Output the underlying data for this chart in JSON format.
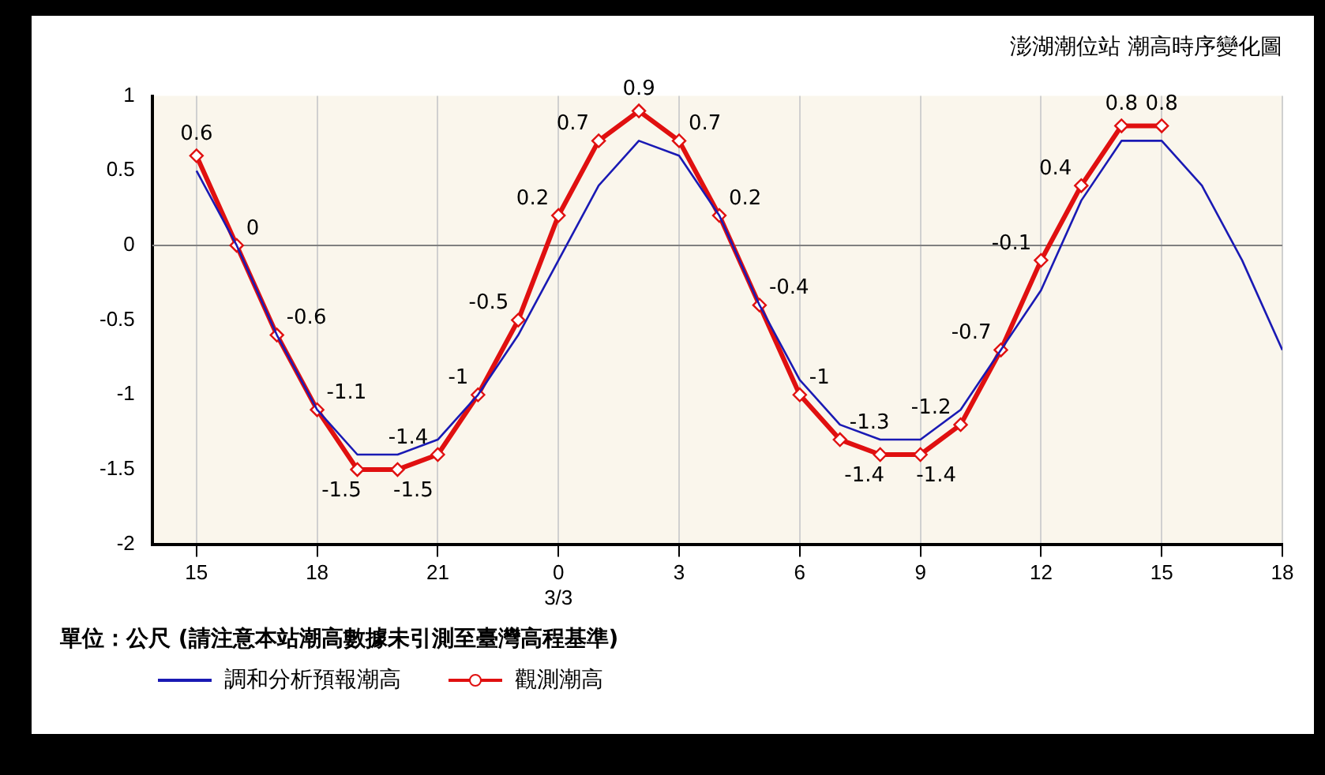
{
  "chart_data": {
    "type": "line",
    "title": "澎湖潮位站 潮高時序變化圖",
    "annotations": [
      "單位：公尺 (請注意本站潮高數據未引測至臺灣高程基準)"
    ],
    "xlim": [
      "--03-02T13:54",
      "--03-03T18:00"
    ],
    "xticks": [
      {
        "value": "--03-02T15:00",
        "label": "15"
      },
      {
        "value": "--03-02T18:00",
        "label": "18"
      },
      {
        "value": "--03-02T21:00",
        "label": "21"
      },
      {
        "value": "--03-03T00:00",
        "label": "0\n3/3"
      },
      {
        "value": "--03-03T03:00",
        "label": "3"
      },
      {
        "value": "--03-03T06:00",
        "label": "6"
      },
      {
        "value": "--03-03T09:00",
        "label": "9"
      },
      {
        "value": "--03-03T12:00",
        "label": "12"
      },
      {
        "value": "--03-03T15:00",
        "label": "15"
      },
      {
        "value": "--03-03T18:00",
        "label": "18"
      }
    ],
    "ylim": [
      -2,
      1
    ],
    "yticks": [
      -2,
      -1.5,
      -1,
      -0.5,
      0,
      0.5,
      1
    ],
    "grid": "x",
    "legend": "bottom",
    "line_style": "solid",
    "ref_lines": [
      {
        "axis": "y",
        "value": 0,
        "color": "#808080"
      }
    ],
    "series": [
      {
        "name": "調和分析預報潮高",
        "color": "#1a1ab4",
        "marker": "none",
        "x": [
          "--03-02T15:00",
          "--03-02T16:00",
          "--03-02T17:00",
          "--03-02T18:00",
          "--03-02T19:00",
          "--03-02T20:00",
          "--03-02T21:00",
          "--03-02T22:00",
          "--03-02T23:00",
          "--03-03T00:00",
          "--03-03T01:00",
          "--03-03T02:00",
          "--03-03T03:00",
          "--03-03T04:00",
          "--03-03T05:00",
          "--03-03T06:00",
          "--03-03T07:00",
          "--03-03T08:00",
          "--03-03T09:00",
          "--03-03T10:00",
          "--03-03T11:00",
          "--03-03T12:00",
          "--03-03T13:00",
          "--03-03T14:00",
          "--03-03T15:00",
          "--03-03T16:00",
          "--03-03T17:00",
          "--03-03T18:00"
        ],
        "values": [
          0.5,
          0,
          -0.6,
          -1.1,
          -1.4,
          -1.4,
          -1.3,
          -1,
          -0.6,
          -0.1,
          0.4,
          0.7,
          0.6,
          0.2,
          -0.4,
          -0.9,
          -1.2,
          -1.3,
          -1.3,
          -1.1,
          -0.7,
          -0.3,
          0.3,
          0.7,
          0.7,
          0.4,
          -0.1,
          -0.7
        ]
      },
      {
        "name": "觀測潮高",
        "color": "#e01010",
        "marker": "diamond",
        "x": [
          "--03-02T15:00",
          "--03-02T16:00",
          "--03-02T17:00",
          "--03-02T18:00",
          "--03-02T19:00",
          "--03-02T20:00",
          "--03-02T21:00",
          "--03-02T22:00",
          "--03-02T23:00",
          "--03-03T00:00",
          "--03-03T01:00",
          "--03-03T02:00",
          "--03-03T03:00",
          "--03-03T04:00",
          "--03-03T05:00",
          "--03-03T06:00",
          "--03-03T07:00",
          "--03-03T08:00",
          "--03-03T09:00",
          "--03-03T10:00",
          "--03-03T11:00",
          "--03-03T12:00",
          "--03-03T13:00",
          "--03-03T14:00",
          "--03-03T15:00"
        ],
        "values": [
          0.6,
          0,
          -0.6,
          -1.1,
          -1.5,
          -1.5,
          -1.4,
          -1,
          -0.5,
          0.2,
          0.7,
          0.9,
          0.7,
          0.2,
          -0.4,
          -1,
          -1.3,
          -1.4,
          -1.4,
          -1.2,
          -0.7,
          -0.1,
          0.4,
          0.8,
          0.8
        ],
        "value_labels": [
          "0.6",
          "0",
          "-0.6",
          "-1.1",
          "-1.5",
          "-1.5",
          "-1.4",
          "-1",
          "-0.5",
          "0.2",
          "0.7",
          "0.9",
          "0.7",
          "0.2",
          "-0.4",
          "-1",
          "-1.3",
          "-1.4",
          "-1.4",
          "-1.2",
          "-0.7",
          "-0.1",
          "0.4",
          "0.8",
          "0.8"
        ]
      }
    ]
  }
}
